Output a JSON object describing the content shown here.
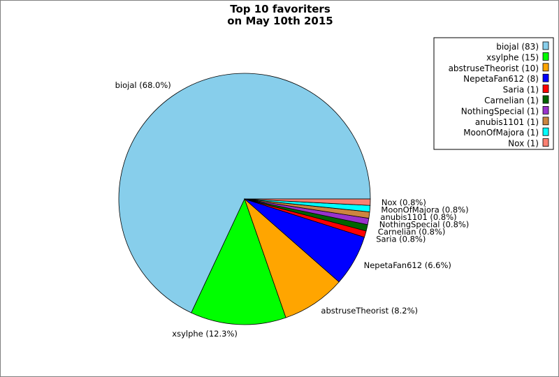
{
  "chart_data": {
    "type": "pie",
    "title": "Top 10 favoriters",
    "subtitle": "on May 10th 2015",
    "legend_position": "top-right",
    "slices": [
      {
        "name": "biojal",
        "count": 83,
        "label": "biojal (68.0%)",
        "legend": "biojal (83)",
        "color": "#87ceeb"
      },
      {
        "name": "xsylphe",
        "count": 15,
        "label": "xsylphe (12.3%)",
        "legend": "xsylphe (15)",
        "color": "#00ff00"
      },
      {
        "name": "abstruseTheorist",
        "count": 10,
        "label": "abstruseTheorist (8.2%)",
        "legend": "abstruseTheorist (10)",
        "color": "#ffa500"
      },
      {
        "name": "NepetaFan612",
        "count": 8,
        "label": "NepetaFan612 (6.6%)",
        "legend": "NepetaFan612 (8)",
        "color": "#0000ff"
      },
      {
        "name": "Saria",
        "count": 1,
        "label": "Saria (0.8%)",
        "legend": "Saria (1)",
        "color": "#ff0000"
      },
      {
        "name": "Carnelian",
        "count": 1,
        "label": "Carnelian (0.8%)",
        "legend": "Carnelian (1)",
        "color": "#006400"
      },
      {
        "name": "NothingSpecial",
        "count": 1,
        "label": "NothingSpecial (0.8%)",
        "legend": "NothingSpecial (1)",
        "color": "#9932cc"
      },
      {
        "name": "anubis1101",
        "count": 1,
        "label": "anubis1101 (0.8%)",
        "legend": "anubis1101 (1)",
        "color": "#cd853f"
      },
      {
        "name": "MoonOfMajora",
        "count": 1,
        "label": "MoonOfMajora (0.8%)",
        "legend": "MoonOfMajora (1)",
        "color": "#00ffff"
      },
      {
        "name": "Nox",
        "count": 1,
        "label": "Nox (0.8%)",
        "legend": "Nox (1)",
        "color": "#fa8072"
      }
    ]
  }
}
